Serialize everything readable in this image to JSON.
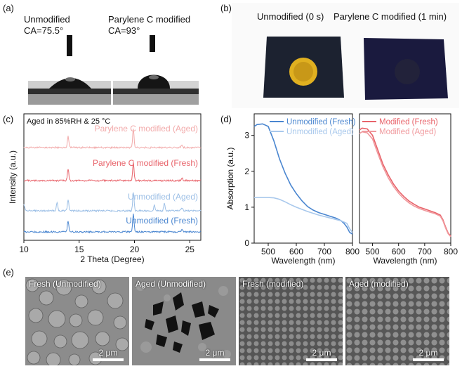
{
  "panels": {
    "a": "(a)",
    "b": "(b)",
    "c": "(c)",
    "d": "(d)",
    "e": "(e)"
  },
  "contact_angle": {
    "unmodified_label": "Unmodified",
    "unmodified_ca": "CA=75.5°",
    "modified_label": "Parylene C modified",
    "modified_ca": "CA=93°"
  },
  "photo": {
    "unmodified_label": "Unmodified  (0 s)",
    "modified_label": "Parylene C modified  (1 min)"
  },
  "chart_data": [
    {
      "type": "line",
      "title": "Aged in 85%RH & 25 °C",
      "xlabel": "2 Theta (Degree)",
      "ylabel": "Intensity (a.u.)",
      "xlim": [
        10,
        26
      ],
      "xticks": [
        "10",
        "15",
        "20",
        "25"
      ],
      "yticks": [],
      "series": [
        {
          "name": "Parylene C modified (Aged)",
          "color": "#f2aaaa",
          "peaks": [
            14.0,
            19.9,
            24.3
          ]
        },
        {
          "name": "Parylene C modified (Fresh)",
          "color": "#e8636a",
          "peaks": [
            14.0,
            19.9,
            24.3
          ]
        },
        {
          "name": "Unmodified (Aged)",
          "color": "#9cbfe6",
          "peaks": [
            10.0,
            13.0,
            14.0,
            19.9,
            21.8,
            22.7,
            24.3
          ]
        },
        {
          "name": "Unmodified (Fresh)",
          "color": "#4a86d0",
          "peaks": [
            14.0,
            19.9,
            24.3
          ]
        }
      ]
    },
    {
      "type": "line",
      "xlabel": "Wavelength (nm)",
      "ylabel": "Absorption (a.u.)",
      "xlim": [
        450,
        800
      ],
      "ylim": [
        0,
        3.6
      ],
      "xticks": [
        "500",
        "600",
        "700",
        "800"
      ],
      "yticks": [
        "0",
        "1",
        "2",
        "3"
      ],
      "series": [
        {
          "name": "Unmodified (Fresh)",
          "color": "#4a86d0",
          "x": [
            450,
            460,
            480,
            500,
            520,
            540,
            560,
            580,
            600,
            620,
            640,
            660,
            680,
            700,
            720,
            740,
            760,
            770,
            780,
            790,
            800
          ],
          "y": [
            3.25,
            3.3,
            3.32,
            3.25,
            2.85,
            2.35,
            1.95,
            1.62,
            1.38,
            1.18,
            1.02,
            0.92,
            0.85,
            0.8,
            0.75,
            0.7,
            0.62,
            0.55,
            0.45,
            0.3,
            0.25
          ]
        },
        {
          "name": "Unmodified (Aged)",
          "color": "#a8c8ec",
          "x": [
            450,
            480,
            500,
            520,
            540,
            560,
            580,
            600,
            640,
            680,
            720,
            760,
            780,
            790,
            800
          ],
          "y": [
            1.27,
            1.27,
            1.27,
            1.26,
            1.22,
            1.15,
            1.07,
            1.0,
            0.88,
            0.78,
            0.7,
            0.62,
            0.55,
            0.4,
            0.3
          ]
        }
      ]
    },
    {
      "type": "line",
      "xlabel": "Wavelength (nm)",
      "xlim": [
        450,
        800
      ],
      "ylim": [
        0,
        3.6
      ],
      "xticks": [
        "500",
        "600",
        "700",
        "800"
      ],
      "yticks": [],
      "series": [
        {
          "name": "Modified (Fresh)",
          "color": "#e8636a",
          "x": [
            450,
            460,
            480,
            500,
            520,
            540,
            560,
            580,
            600,
            620,
            640,
            660,
            680,
            700,
            720,
            740,
            760,
            770,
            780,
            790,
            800
          ],
          "y": [
            3.15,
            3.2,
            3.18,
            3.0,
            2.6,
            2.2,
            1.9,
            1.65,
            1.45,
            1.3,
            1.17,
            1.08,
            1.0,
            0.95,
            0.9,
            0.85,
            0.78,
            0.65,
            0.45,
            0.28,
            0.2
          ]
        },
        {
          "name": "Modified (Aged)",
          "color": "#f09a9e",
          "x": [
            450,
            460,
            480,
            500,
            520,
            540,
            560,
            580,
            600,
            620,
            640,
            660,
            680,
            700,
            720,
            740,
            760,
            770,
            780,
            790,
            800
          ],
          "y": [
            3.05,
            3.1,
            3.07,
            2.9,
            2.5,
            2.12,
            1.82,
            1.58,
            1.39,
            1.24,
            1.12,
            1.03,
            0.96,
            0.91,
            0.86,
            0.82,
            0.75,
            0.62,
            0.42,
            0.26,
            0.18
          ]
        }
      ]
    }
  ],
  "sem": [
    {
      "caption": "Fresh (Unmodified)",
      "scale": "2 μm"
    },
    {
      "caption": "Aged  (Unmodified)",
      "scale": "2 μm"
    },
    {
      "caption": "Fresh  (modified)",
      "scale": "2 μm"
    },
    {
      "caption": "Aged  (modified)",
      "scale": "2 μm"
    }
  ]
}
